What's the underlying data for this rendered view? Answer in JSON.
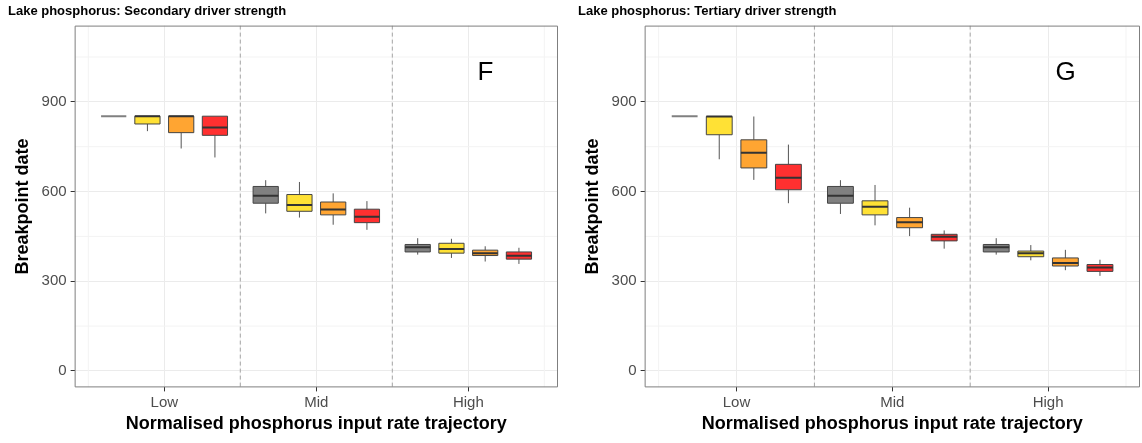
{
  "chart_data": [
    {
      "type": "box",
      "title": "Lake phosphorus: Secondary driver strength",
      "xlabel": "Normalised phosphorus input rate trajectory",
      "ylabel": "Breakpoint date",
      "categories": [
        "Low",
        "Mid",
        "High"
      ],
      "ylim": [
        -55,
        1155
      ],
      "yticks": [
        0,
        300,
        600,
        900
      ],
      "grid": true,
      "annotations": [
        "F"
      ],
      "series": [
        {
          "color": "#808080",
          "boxes": [
            {
              "low": 852,
              "q1": 852,
              "median": 852,
              "q3": 852,
              "high": 852
            },
            {
              "low": 527,
              "q1": 561,
              "median": 586,
              "q3": 617,
              "high": 638
            },
            {
              "low": 389,
              "q1": 398,
              "median": 414,
              "q3": 423,
              "high": 444
            }
          ]
        },
        {
          "color": "#ffe135",
          "boxes": [
            {
              "low": 802,
              "q1": 826,
              "median": 852,
              "q3": 852,
              "high": 852
            },
            {
              "low": 513,
              "q1": 534,
              "median": 555,
              "q3": 590,
              "high": 632
            },
            {
              "low": 378,
              "q1": 394,
              "median": 408,
              "q3": 427,
              "high": 442
            }
          ]
        },
        {
          "color": "#ffa532",
          "boxes": [
            {
              "low": 744,
              "q1": 797,
              "median": 852,
              "q3": 852,
              "high": 852
            },
            {
              "low": 489,
              "q1": 522,
              "median": 540,
              "q3": 565,
              "high": 594
            },
            {
              "low": 366,
              "q1": 386,
              "median": 394,
              "q3": 404,
              "high": 417
            }
          ]
        },
        {
          "color": "#ff3030",
          "boxes": [
            {
              "low": 714,
              "q1": 788,
              "median": 814,
              "q3": 852,
              "high": 852
            },
            {
              "low": 472,
              "q1": 496,
              "median": 516,
              "q3": 541,
              "high": 568
            },
            {
              "low": 358,
              "q1": 374,
              "median": 385,
              "q3": 398,
              "high": 412
            }
          ]
        }
      ]
    },
    {
      "type": "box",
      "title": "Lake phosphorus: Tertiary driver strength",
      "xlabel": "Normalised phosphorus input rate trajectory",
      "ylabel": "Breakpoint date",
      "categories": [
        "Low",
        "Mid",
        "High"
      ],
      "ylim": [
        -55,
        1155
      ],
      "yticks": [
        0,
        300,
        600,
        900
      ],
      "grid": true,
      "annotations": [
        "G"
      ],
      "series": [
        {
          "color": "#808080",
          "boxes": [
            {
              "low": 852,
              "q1": 852,
              "median": 852,
              "q3": 852,
              "high": 852
            },
            {
              "low": 525,
              "q1": 561,
              "median": 586,
              "q3": 617,
              "high": 638
            },
            {
              "low": 389,
              "q1": 398,
              "median": 414,
              "q3": 423,
              "high": 444
            }
          ]
        },
        {
          "color": "#ffe135",
          "boxes": [
            {
              "low": 708,
              "q1": 790,
              "median": 851,
              "q3": 851,
              "high": 851
            },
            {
              "low": 487,
              "q1": 522,
              "median": 549,
              "q3": 569,
              "high": 622
            },
            {
              "low": 370,
              "q1": 382,
              "median": 394,
              "q3": 401,
              "high": 421
            }
          ]
        },
        {
          "color": "#ffa532",
          "boxes": [
            {
              "low": 639,
              "q1": 679,
              "median": 730,
              "q3": 773,
              "high": 851
            },
            {
              "low": 451,
              "q1": 479,
              "median": 497,
              "q3": 513,
              "high": 546
            },
            {
              "low": 337,
              "q1": 351,
              "median": 361,
              "q3": 378,
              "high": 405
            }
          ]
        },
        {
          "color": "#ff3030",
          "boxes": [
            {
              "low": 561,
              "q1": 606,
              "median": 646,
              "q3": 691,
              "high": 757
            },
            {
              "low": 409,
              "q1": 435,
              "median": 449,
              "q3": 457,
              "high": 470
            },
            {
              "low": 318,
              "q1": 333,
              "median": 346,
              "q3": 356,
              "high": 372
            }
          ]
        }
      ]
    }
  ]
}
